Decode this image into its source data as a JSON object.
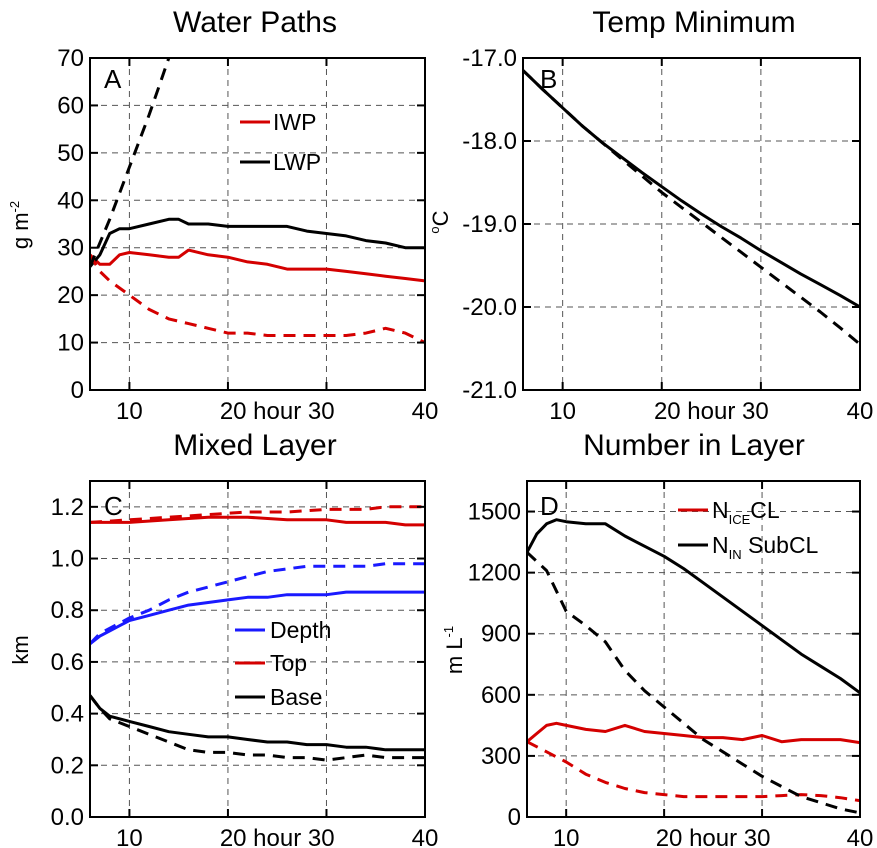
{
  "figure": {
    "panels": [
      {
        "id": "A",
        "title": "Water Paths",
        "ylabel": "g m",
        "ylabel_sup": "-2"
      },
      {
        "id": "B",
        "title": "Temp Minimum",
        "ylabel": "C",
        "ylabel_pre": "o"
      },
      {
        "id": "C",
        "title": "Mixed Layer",
        "ylabel": "km"
      },
      {
        "id": "D",
        "title": "Number in Layer",
        "ylabel": "m L",
        "ylabel_sup": "-1"
      }
    ],
    "x_tick_labels": [
      "10",
      "20 hour 30",
      "40"
    ],
    "legends": {
      "A": [
        "IWP",
        "LWP"
      ],
      "C": [
        "Depth",
        "Top",
        "Base"
      ],
      "D": [
        {
          "main": "N",
          "sub": "ICE",
          "rest": "CL"
        },
        {
          "main": "N",
          "sub": "IN",
          "rest": " SubCL"
        }
      ]
    }
  },
  "chart_data": [
    {
      "type": "line",
      "panel": "A",
      "title": "Water Paths",
      "ylabel": "g m-2",
      "xlim": [
        6,
        40
      ],
      "ylim": [
        0,
        70
      ],
      "xticks": [
        10,
        20,
        30,
        40
      ],
      "yticks": [
        0,
        10,
        20,
        30,
        40,
        50,
        60,
        70
      ],
      "grid": true,
      "legend_position": "top-right",
      "series": [
        {
          "name": "IWP",
          "color": "#d40000",
          "style": "solid",
          "x": [
            6,
            7,
            8,
            9,
            10,
            12,
            14,
            15,
            16,
            18,
            20,
            22,
            24,
            26,
            28,
            30,
            32,
            34,
            36,
            38,
            40
          ],
          "y": [
            28.5,
            26.5,
            26.5,
            28.5,
            29,
            28.5,
            28,
            28,
            29.5,
            28.5,
            28,
            27,
            26.5,
            25.5,
            25.5,
            25.5,
            25,
            24.5,
            24,
            23.5,
            23
          ]
        },
        {
          "name": "LWP",
          "color": "#000000",
          "style": "solid",
          "x": [
            6,
            7,
            8,
            9,
            10,
            12,
            14,
            15,
            16,
            18,
            20,
            22,
            24,
            26,
            28,
            30,
            32,
            34,
            36,
            38,
            40
          ],
          "y": [
            26,
            28.5,
            33,
            34,
            34,
            35,
            36,
            36,
            35,
            35,
            34.5,
            34.5,
            34.5,
            34.5,
            33.5,
            33,
            32.5,
            31.5,
            31,
            30,
            30
          ]
        },
        {
          "color": "#d40000",
          "style": "dashed",
          "x": [
            6,
            7,
            8,
            10,
            12,
            14,
            16,
            18,
            20,
            22,
            24,
            26,
            28,
            30,
            32,
            34,
            36,
            38,
            40
          ],
          "y": [
            28.5,
            25,
            23,
            20,
            17,
            15,
            14,
            13,
            12,
            12,
            11.5,
            11.5,
            11.5,
            11.5,
            11.5,
            12,
            13,
            12,
            10
          ]
        },
        {
          "color": "#000000",
          "style": "dashed",
          "x": [
            6,
            8,
            10,
            12,
            13,
            14
          ],
          "y": [
            26,
            36,
            47,
            58,
            64,
            70
          ]
        }
      ]
    },
    {
      "type": "line",
      "panel": "B",
      "title": "Temp Minimum",
      "ylabel": "oC",
      "xlim": [
        6,
        40
      ],
      "ylim": [
        -21.0,
        -17.0
      ],
      "xticks": [
        10,
        20,
        30,
        40
      ],
      "yticks": [
        -21.0,
        -20.0,
        -19.0,
        -18.0,
        -17.0
      ],
      "grid": true,
      "series": [
        {
          "color": "#000000",
          "style": "solid",
          "x": [
            6,
            8,
            10,
            12,
            14,
            16,
            18,
            20,
            22,
            24,
            26,
            28,
            30,
            32,
            34,
            36,
            38,
            40
          ],
          "y": [
            -17.15,
            -17.38,
            -17.6,
            -17.82,
            -18.02,
            -18.2,
            -18.38,
            -18.55,
            -18.72,
            -18.88,
            -19.03,
            -19.17,
            -19.32,
            -19.46,
            -19.6,
            -19.73,
            -19.86,
            -20.0
          ]
        },
        {
          "color": "#000000",
          "style": "dashed",
          "x": [
            6,
            8,
            10,
            12,
            14,
            16,
            18,
            20,
            22,
            24,
            26,
            28,
            30,
            32,
            34,
            36,
            38,
            40
          ],
          "y": [
            -17.15,
            -17.38,
            -17.6,
            -17.82,
            -18.02,
            -18.22,
            -18.42,
            -18.62,
            -18.8,
            -18.98,
            -19.16,
            -19.34,
            -19.52,
            -19.7,
            -19.88,
            -20.06,
            -20.25,
            -20.45
          ]
        }
      ]
    },
    {
      "type": "line",
      "panel": "C",
      "title": "Mixed Layer",
      "ylabel": "km",
      "xlim": [
        6,
        40
      ],
      "ylim": [
        0.0,
        1.3
      ],
      "xticks": [
        10,
        20,
        30,
        40
      ],
      "yticks": [
        0.0,
        0.2,
        0.4,
        0.6,
        0.8,
        1.0,
        1.2
      ],
      "grid": true,
      "legend_position": "center-right",
      "series": [
        {
          "name": "Depth",
          "color": "#1a1aff",
          "style": "solid",
          "x": [
            6,
            7,
            8,
            9,
            10,
            12,
            14,
            16,
            18,
            20,
            22,
            24,
            26,
            28,
            30,
            32,
            34,
            36,
            38,
            40
          ],
          "y": [
            0.67,
            0.7,
            0.72,
            0.74,
            0.76,
            0.78,
            0.8,
            0.82,
            0.83,
            0.84,
            0.85,
            0.85,
            0.86,
            0.86,
            0.86,
            0.87,
            0.87,
            0.87,
            0.87,
            0.87
          ]
        },
        {
          "name": "Top",
          "color": "#d40000",
          "style": "solid",
          "x": [
            6,
            10,
            14,
            18,
            22,
            26,
            30,
            32,
            34,
            36,
            38,
            40
          ],
          "y": [
            1.14,
            1.14,
            1.15,
            1.16,
            1.16,
            1.15,
            1.15,
            1.14,
            1.14,
            1.14,
            1.13,
            1.13
          ]
        },
        {
          "name": "Base",
          "color": "#000000",
          "style": "solid",
          "x": [
            6,
            7,
            8,
            10,
            12,
            14,
            16,
            18,
            20,
            22,
            24,
            26,
            28,
            30,
            32,
            34,
            36,
            38,
            40
          ],
          "y": [
            0.47,
            0.42,
            0.39,
            0.37,
            0.35,
            0.33,
            0.32,
            0.31,
            0.31,
            0.3,
            0.29,
            0.29,
            0.28,
            0.28,
            0.27,
            0.27,
            0.26,
            0.26,
            0.26
          ]
        },
        {
          "color": "#1a1aff",
          "style": "dashed",
          "x": [
            6,
            7,
            8,
            10,
            12,
            14,
            16,
            18,
            20,
            22,
            24,
            26,
            28,
            30,
            32,
            34,
            36,
            38,
            40
          ],
          "y": [
            0.67,
            0.71,
            0.73,
            0.77,
            0.8,
            0.84,
            0.87,
            0.89,
            0.91,
            0.93,
            0.95,
            0.96,
            0.97,
            0.97,
            0.97,
            0.97,
            0.98,
            0.98,
            0.98
          ]
        },
        {
          "color": "#d40000",
          "style": "dashed",
          "x": [
            6,
            10,
            14,
            18,
            22,
            26,
            30,
            32,
            34,
            36,
            38,
            40
          ],
          "y": [
            1.14,
            1.15,
            1.16,
            1.17,
            1.18,
            1.18,
            1.19,
            1.19,
            1.19,
            1.2,
            1.2,
            1.2
          ]
        },
        {
          "color": "#000000",
          "style": "dashed",
          "x": [
            6,
            7,
            8,
            10,
            12,
            14,
            16,
            18,
            20,
            22,
            24,
            26,
            28,
            30,
            32,
            34,
            36,
            38,
            40
          ],
          "y": [
            0.47,
            0.42,
            0.38,
            0.35,
            0.32,
            0.29,
            0.26,
            0.25,
            0.25,
            0.24,
            0.24,
            0.23,
            0.23,
            0.22,
            0.23,
            0.24,
            0.23,
            0.23,
            0.23
          ]
        }
      ]
    },
    {
      "type": "line",
      "panel": "D",
      "title": "Number in Layer",
      "ylabel": "m L-1",
      "xlim": [
        6,
        40
      ],
      "ylim": [
        0,
        1650
      ],
      "xticks": [
        10,
        20,
        30,
        40
      ],
      "yticks": [
        0,
        300,
        600,
        900,
        1200,
        1500
      ],
      "grid": true,
      "legend_position": "top-right",
      "series": [
        {
          "name": "NICECL",
          "color": "#d40000",
          "style": "solid",
          "x": [
            6,
            7,
            8,
            9,
            10,
            12,
            14,
            16,
            18,
            20,
            22,
            24,
            26,
            28,
            30,
            32,
            34,
            36,
            38,
            40
          ],
          "y": [
            370,
            410,
            450,
            460,
            450,
            430,
            420,
            450,
            420,
            410,
            400,
            390,
            390,
            380,
            400,
            370,
            380,
            380,
            380,
            365
          ]
        },
        {
          "name": "NIN SubCL",
          "color": "#000000",
          "style": "solid",
          "x": [
            6,
            7,
            8,
            9,
            10,
            12,
            14,
            16,
            18,
            20,
            22,
            24,
            26,
            28,
            30,
            32,
            34,
            36,
            38,
            40
          ],
          "y": [
            1300,
            1390,
            1440,
            1460,
            1450,
            1440,
            1440,
            1380,
            1330,
            1280,
            1220,
            1150,
            1080,
            1010,
            940,
            870,
            800,
            740,
            680,
            610
          ]
        },
        {
          "color": "#d40000",
          "style": "dashed",
          "x": [
            6,
            8,
            10,
            12,
            14,
            16,
            18,
            20,
            22,
            24,
            26,
            28,
            30,
            32,
            34,
            36,
            38,
            40
          ],
          "y": [
            370,
            320,
            270,
            210,
            170,
            140,
            120,
            110,
            100,
            100,
            100,
            100,
            100,
            105,
            110,
            105,
            95,
            80
          ]
        },
        {
          "color": "#000000",
          "style": "dashed",
          "x": [
            6,
            8,
            10,
            12,
            14,
            16,
            18,
            20,
            22,
            24,
            26,
            28,
            30,
            32,
            34,
            36,
            38,
            40
          ],
          "y": [
            1300,
            1210,
            1010,
            940,
            860,
            720,
            620,
            540,
            460,
            380,
            320,
            260,
            200,
            150,
            100,
            70,
            40,
            20
          ]
        }
      ]
    }
  ]
}
